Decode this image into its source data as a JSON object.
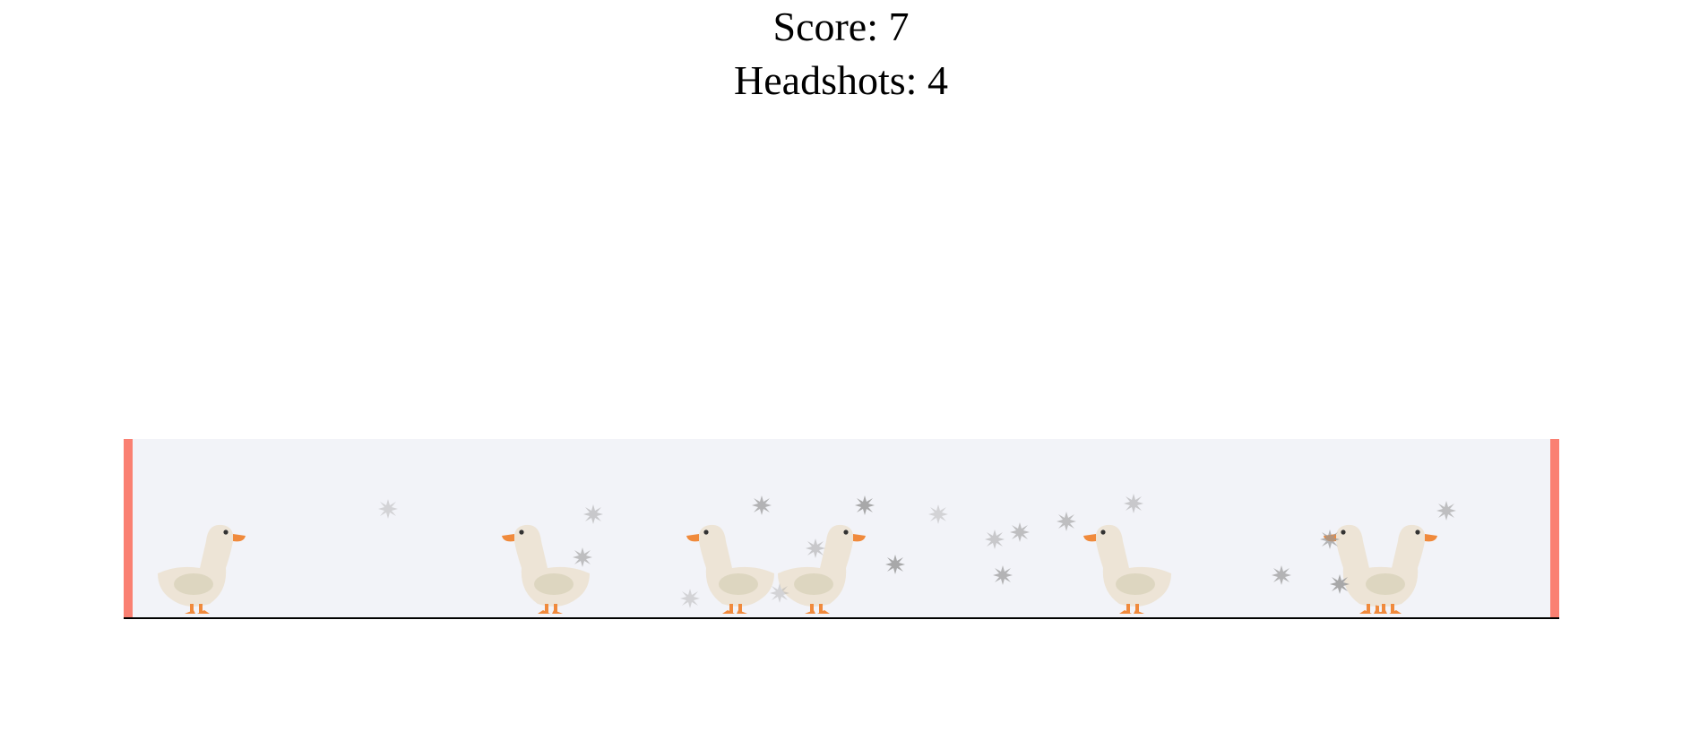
{
  "hud": {
    "score_label": "Score:",
    "score_value": 7,
    "headshots_label": "Headshots:",
    "headshots_value": 4
  },
  "colors": {
    "arena_background": "#f2f3f8",
    "wall": "#fa8072",
    "duck_body": "#ede4d6",
    "duck_wing": "#ddd6c0",
    "duck_beak": "#f08a3c",
    "duck_legs": "#f08a3c",
    "duck_eye": "#333333",
    "shot_mark": "#9a9a9a"
  },
  "ducks": [
    {
      "facing": "right"
    },
    {
      "facing": "left"
    },
    {
      "facing": "left"
    },
    {
      "facing": "right"
    },
    {
      "facing": "left"
    },
    {
      "facing": "left"
    },
    {
      "facing": "right"
    }
  ],
  "shot_marks_count": 19
}
